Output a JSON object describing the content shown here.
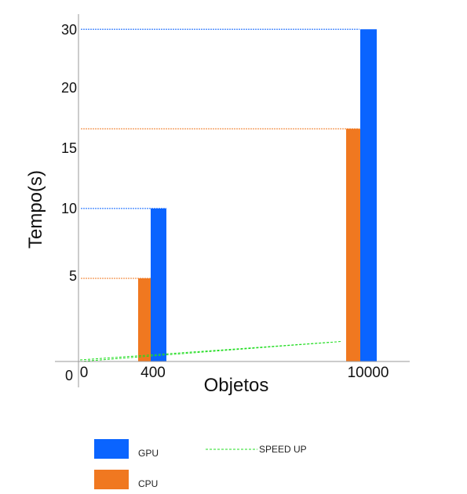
{
  "chart_data": {
    "type": "bar",
    "title": "",
    "xlabel": "Objetos",
    "ylabel": "Tempo(s)",
    "x_tick_labels": [
      "0",
      "400",
      "10000"
    ],
    "categories": [
      "400",
      "10000"
    ],
    "y_ticks": [
      {
        "value": 0,
        "label": "0"
      },
      {
        "value": 5,
        "label": "5"
      },
      {
        "value": 10,
        "label": "10"
      },
      {
        "value": 15,
        "label": "15"
      },
      {
        "value": 20,
        "label": "20"
      },
      {
        "value": 30,
        "label": "30"
      }
    ],
    "series": [
      {
        "name": "CPU",
        "color": "#f07820",
        "values": [
          5,
          16.8
        ]
      },
      {
        "name": "GPU",
        "color": "#0a64ff",
        "values": [
          10.2,
          30.5
        ]
      }
    ],
    "speed_up": {
      "name": "SPEED UP",
      "color": "#22dd22",
      "start": 0,
      "end": 1.2
    },
    "legend_position": "bottom"
  }
}
